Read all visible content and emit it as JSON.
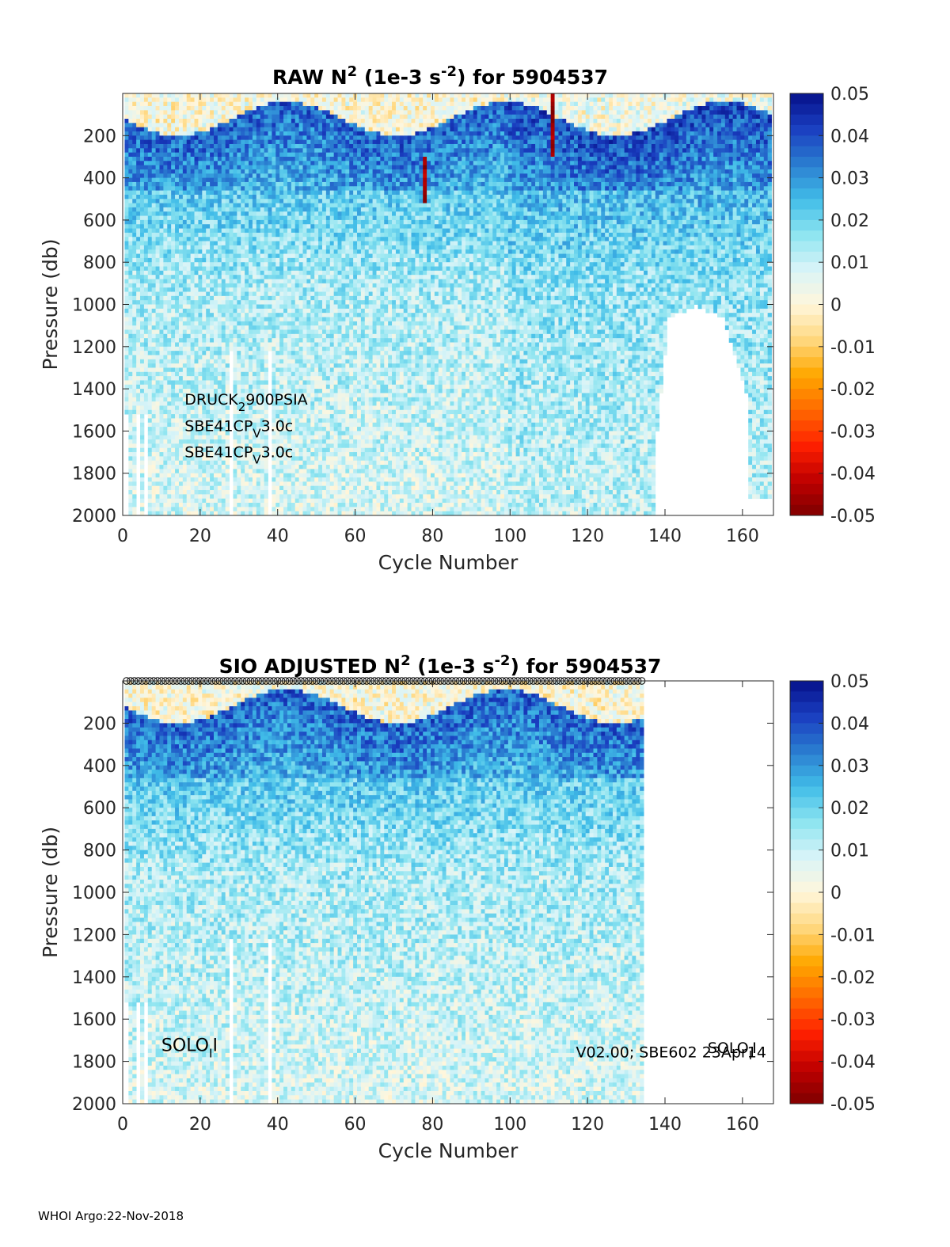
{
  "footer": "WHOI Argo:22-Nov-2018",
  "colormap": [
    "#7f0000",
    "#c00000",
    "#ff2000",
    "#ff6a00",
    "#ffa800",
    "#ffd880",
    "#fff6dc",
    "#d8f4f8",
    "#8ce4f0",
    "#40bce8",
    "#2a7cd0",
    "#1a3ec0",
    "#06118a"
  ],
  "chart_data": [
    {
      "type": "heatmap",
      "title": "RAW N² (1e-3 s⁻²) for 5904537",
      "title_parts": {
        "pre": "RAW N",
        "sup1": "2",
        "mid": " (1e-3 s",
        "sup2": "-2",
        "post": ") for 5904537"
      },
      "xlabel": "Cycle Number",
      "ylabel": "Pressure (db)",
      "xlim": [
        0,
        168
      ],
      "ylim": [
        2000,
        0
      ],
      "xticks": [
        0,
        20,
        40,
        60,
        80,
        100,
        120,
        140,
        160
      ],
      "yticks": [
        200,
        400,
        600,
        800,
        1000,
        1200,
        1400,
        1600,
        1800,
        2000
      ],
      "clim": [
        -0.05,
        0.05
      ],
      "cticks": [
        "0.05",
        "0.04",
        "0.03",
        "0.02",
        "0.01",
        "0",
        "-0.01",
        "-0.02",
        "-0.03",
        "-0.04",
        "-0.05"
      ],
      "cycles_max": 167,
      "annotations": [
        {
          "text": "DRUCK",
          "sub": "2",
          "text2": "900PSIA",
          "x": 16,
          "p": 1475
        },
        {
          "text": "SBE41CP",
          "sub": "V",
          "text2": "3.0c",
          "x": 16,
          "p": 1600
        },
        {
          "text": "SBE41CP",
          "sub": "V",
          "text2": "3.0c",
          "x": 16,
          "p": 1725
        }
      ]
    },
    {
      "type": "heatmap",
      "title": "SIO  ADJUSTED N² (1e-3 s⁻²) for 5904537",
      "title_parts": {
        "pre": "SIO  ADJUSTED N",
        "sup1": "2",
        "mid": " (1e-3 s",
        "sup2": "-2",
        "post": ") for 5904537"
      },
      "xlabel": "Cycle Number",
      "ylabel": "Pressure (db)",
      "xlim": [
        0,
        168
      ],
      "ylim": [
        2000,
        0
      ],
      "xticks": [
        0,
        20,
        40,
        60,
        80,
        100,
        120,
        140,
        160
      ],
      "yticks": [
        200,
        400,
        600,
        800,
        1000,
        1200,
        1400,
        1600,
        1800,
        2000
      ],
      "clim": [
        -0.05,
        0.05
      ],
      "cticks": [
        "0.05",
        "0.04",
        "0.03",
        "0.02",
        "0.01",
        "0",
        "-0.01",
        "-0.02",
        "-0.03",
        "-0.04",
        "-0.05"
      ],
      "cycles_max": 134,
      "qc_markers": {
        "from": 1,
        "to": 134,
        "p": 0
      },
      "annotations": [
        {
          "text": "SOLO",
          "sub": "I",
          "text2": "I",
          "x": 10,
          "p": 1750,
          "big": true
        },
        {
          "text": "V02.00; SBE602 23Apr14",
          "x": 117,
          "p": 1780
        },
        {
          "text": "SOLO",
          "sub": "I",
          "text2": "I",
          "x": 151,
          "p": 1760
        }
      ]
    }
  ]
}
